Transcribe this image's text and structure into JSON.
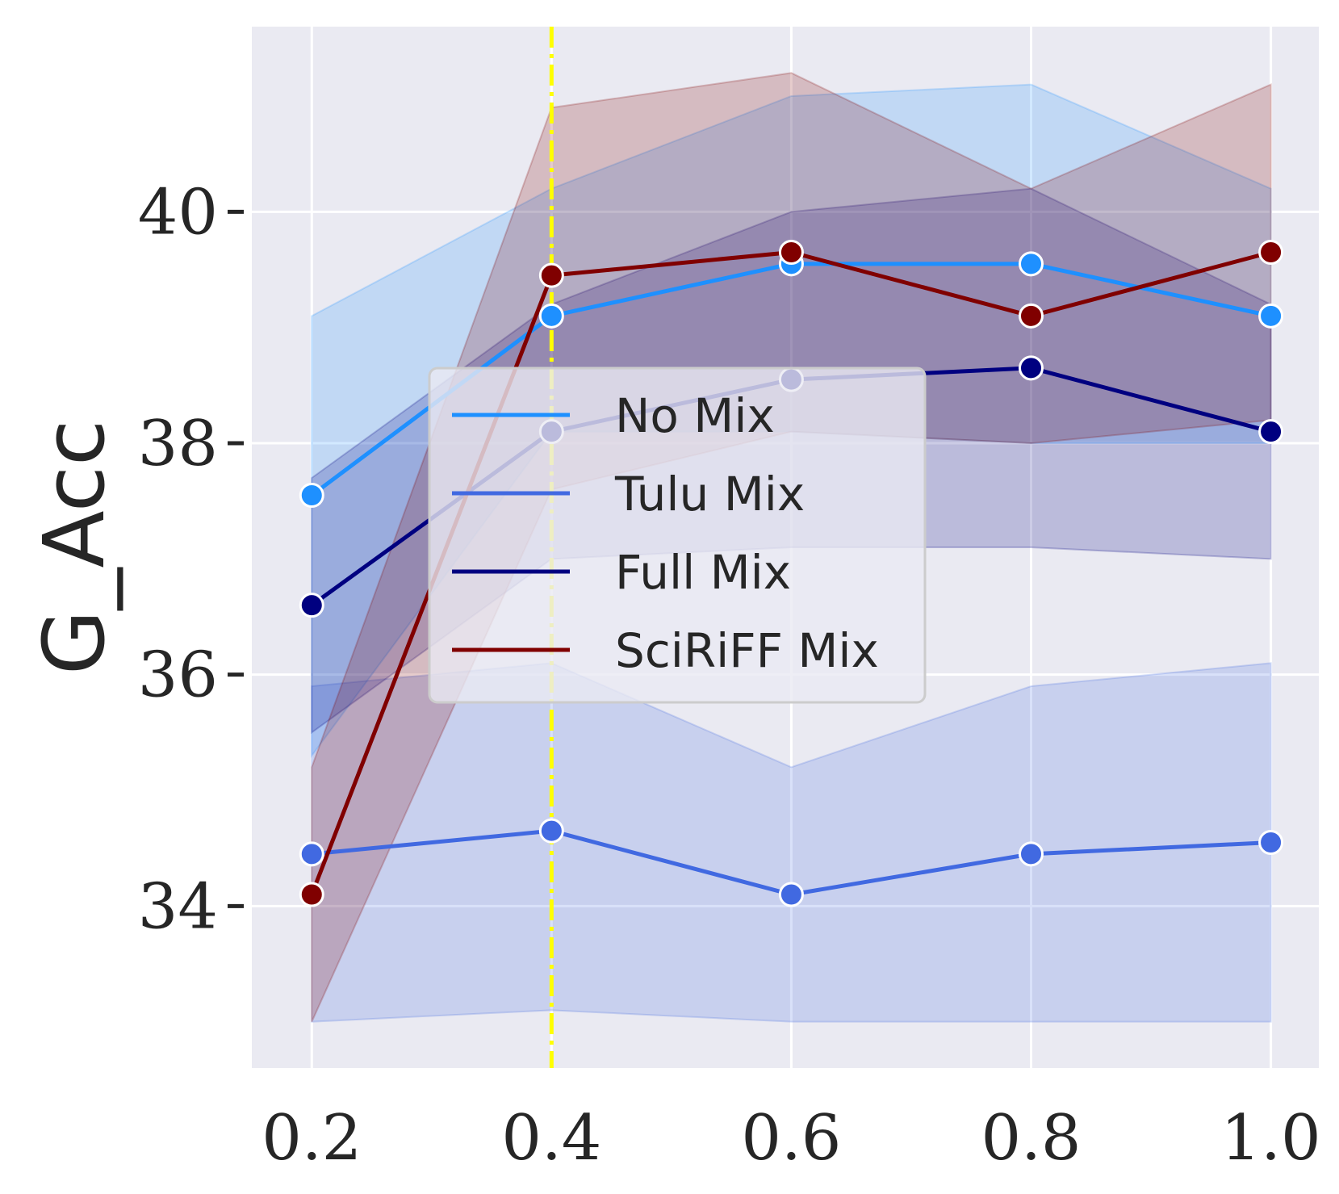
{
  "chart_data": {
    "type": "line",
    "title": "",
    "xlabel": "",
    "ylabel": "G_Acc",
    "x": [
      0.2,
      0.4,
      0.6,
      0.8,
      1.0
    ],
    "x_tick_labels": [
      "0.2",
      "0.4",
      "0.6",
      "0.8",
      "1.0"
    ],
    "y_ticks": [
      34,
      36,
      38,
      40
    ],
    "y_tick_labels": [
      "34",
      "36",
      "38",
      "40"
    ],
    "xlim": [
      0.15,
      1.04
    ],
    "ylim": [
      32.6,
      41.6
    ],
    "grid": true,
    "legend_position": "center",
    "reference_line": {
      "x": 0.4,
      "color": "#ffff00",
      "style": "dash-dot"
    },
    "series": [
      {
        "name": "No Mix",
        "color": "#1e90ff",
        "values": [
          37.55,
          39.1,
          39.55,
          39.55,
          39.1
        ],
        "ci_low": [
          35.3,
          38.1,
          38.1,
          38.0,
          38.0
        ],
        "ci_high": [
          39.1,
          40.2,
          41.0,
          41.1,
          40.2
        ]
      },
      {
        "name": "Tulu Mix",
        "color": "#4169e1",
        "values": [
          34.45,
          34.65,
          34.1,
          34.45,
          34.55
        ],
        "ci_low": [
          33.0,
          33.1,
          33.0,
          33.0,
          33.0
        ],
        "ci_high": [
          35.9,
          36.1,
          35.2,
          35.9,
          36.1
        ]
      },
      {
        "name": "Full Mix",
        "color": "#000080",
        "values": [
          36.6,
          38.1,
          38.55,
          38.65,
          38.1
        ],
        "ci_low": [
          35.5,
          37.0,
          37.1,
          37.1,
          37.0
        ],
        "ci_high": [
          37.7,
          39.2,
          40.0,
          40.2,
          39.2
        ]
      },
      {
        "name": "SciRiFF Mix",
        "color": "#800000",
        "values": [
          34.1,
          39.45,
          39.65,
          39.1,
          39.65
        ],
        "ci_low": [
          33.0,
          37.6,
          38.1,
          38.0,
          38.2
        ],
        "ci_high": [
          35.2,
          40.9,
          41.2,
          40.2,
          41.1
        ]
      }
    ]
  }
}
